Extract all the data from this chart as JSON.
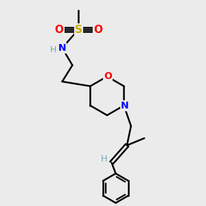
{
  "bg_color": "#ebebeb",
  "atom_colors": {
    "C": "#000000",
    "H": "#6aabb0",
    "N": "#0000ff",
    "O": "#ff0000",
    "S": "#ccaa00"
  },
  "bond_color": "#000000",
  "bond_width": 1.8,
  "figsize": [
    3.0,
    3.0
  ],
  "dpi": 100
}
